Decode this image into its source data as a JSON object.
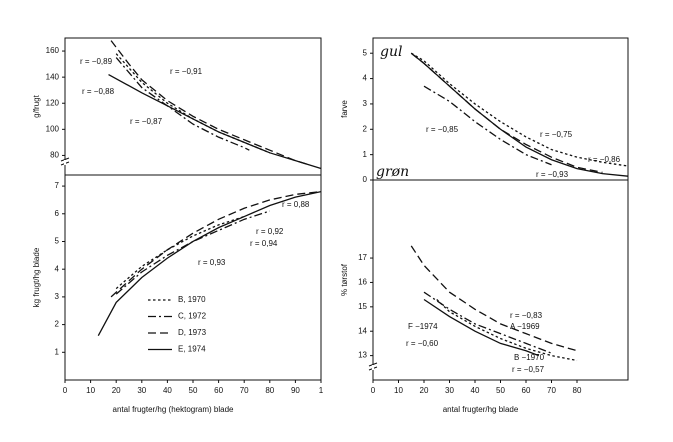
{
  "chart_data": [
    {
      "type": "line",
      "ylabel": "g/frugt",
      "xlim": [
        0,
        100
      ],
      "ylim": [
        65,
        170
      ],
      "yticks": [
        80,
        100,
        120,
        140,
        160
      ],
      "axis_break": true,
      "series": [
        {
          "color": "#111",
          "style": "solid",
          "x": [
            17,
            30,
            40,
            50,
            60,
            70,
            80,
            90,
            100
          ],
          "values": [
            142,
            128,
            118,
            108,
            98,
            90,
            82,
            76,
            70
          ]
        },
        {
          "color": "#111",
          "style": "dashed",
          "x": [
            18,
            25,
            30,
            40,
            50,
            60,
            70,
            80,
            90,
            95
          ],
          "values": [
            168,
            150,
            138,
            122,
            110,
            100,
            92,
            84,
            76,
            73
          ]
        },
        {
          "color": "#111",
          "style": "dashdot",
          "x": [
            20,
            30,
            40,
            50,
            60,
            70,
            72
          ],
          "values": [
            155,
            132,
            118,
            104,
            94,
            86,
            84
          ]
        },
        {
          "color": "#111",
          "style": "dotted",
          "x": [
            20,
            30,
            40,
            50,
            60,
            70,
            80
          ],
          "values": [
            158,
            136,
            120,
            108,
            98,
            90,
            82
          ]
        }
      ],
      "annotations": [
        "r = −0,89",
        "r = −0,91",
        "r = −0,88",
        "r = −0,87"
      ]
    },
    {
      "type": "line",
      "ylabel": "farve",
      "xlim": [
        0,
        100
      ],
      "ylim": [
        0,
        5.6
      ],
      "yticks": [
        0,
        1,
        2,
        3,
        4,
        5
      ],
      "axis_break": false,
      "series": [
        {
          "color": "#111",
          "style": "solid",
          "x": [
            15,
            20,
            30,
            40,
            50,
            60,
            70,
            80,
            90,
            100
          ],
          "values": [
            5,
            4.6,
            3.7,
            2.8,
            2.0,
            1.3,
            0.8,
            0.45,
            0.25,
            0.15
          ]
        },
        {
          "color": "#111",
          "style": "dashdot",
          "x": [
            20,
            30,
            40,
            50,
            60,
            70
          ],
          "values": [
            3.7,
            3.1,
            2.3,
            1.6,
            1.0,
            0.6
          ]
        },
        {
          "color": "#111",
          "style": "dotted",
          "x": [
            15,
            20,
            30,
            40,
            50,
            60,
            70,
            80,
            90,
            100
          ],
          "values": [
            5,
            4.7,
            3.8,
            3.0,
            2.3,
            1.7,
            1.2,
            0.9,
            0.7,
            0.55
          ]
        },
        {
          "color": "#111",
          "style": "dashed",
          "x": [
            15,
            20,
            30,
            40,
            50,
            60,
            70,
            80,
            90
          ],
          "values": [
            5,
            4.6,
            3.7,
            2.8,
            2.0,
            1.4,
            0.9,
            0.5,
            0.3
          ]
        }
      ],
      "annotations": [
        "gul",
        "grøn",
        "r = −0,85",
        "r = −0,75",
        "r = −0,86",
        "r = −0,93"
      ]
    },
    {
      "type": "line",
      "ylabel": "kg frugt/hg blade",
      "xlabel": "antal frugter/hg (hektogram) blade",
      "xlim": [
        0,
        100
      ],
      "ylim": [
        0,
        7.4
      ],
      "xticks": [
        0,
        10,
        20,
        30,
        40,
        50,
        60,
        70,
        80,
        90,
        {
          "value": 100,
          "label": "1"
        }
      ],
      "yticks": [
        1,
        2,
        3,
        4,
        5,
        6,
        7
      ],
      "axis_break": false,
      "series": [
        {
          "name": "B, 1970",
          "color": "#111",
          "style": "dotted",
          "x": [
            20,
            30,
            40,
            50,
            60,
            70
          ],
          "values": [
            3.3,
            4.1,
            4.7,
            5.2,
            5.6,
            5.9
          ]
        },
        {
          "name": "C, 1972",
          "color": "#111",
          "style": "dashdot",
          "x": [
            20,
            30,
            40,
            50,
            60,
            70,
            80
          ],
          "values": [
            3.1,
            3.9,
            4.5,
            5.0,
            5.4,
            5.8,
            6.1
          ]
        },
        {
          "name": "D, 1973",
          "color": "#111",
          "style": "dashed",
          "x": [
            18,
            30,
            40,
            50,
            60,
            70,
            80,
            90,
            100
          ],
          "values": [
            3.0,
            4.0,
            4.7,
            5.3,
            5.8,
            6.2,
            6.5,
            6.7,
            6.8
          ]
        },
        {
          "name": "E, 1974",
          "color": "#111",
          "style": "solid",
          "x": [
            13,
            20,
            30,
            40,
            50,
            60,
            70,
            80,
            90,
            100
          ],
          "values": [
            1.6,
            2.8,
            3.7,
            4.4,
            5.0,
            5.5,
            5.9,
            6.3,
            6.6,
            6.8
          ]
        }
      ],
      "annotations": [
        "r = 0,88",
        "r = 0,92",
        "r = 0,94",
        "r = 0,93"
      ]
    },
    {
      "type": "line",
      "ylabel": "% tørstof",
      "xlabel": "antal frugter/hg blade",
      "xlim": [
        0,
        100
      ],
      "ylim": [
        12,
        20.2
      ],
      "xticks": [
        0,
        10,
        20,
        30,
        40,
        50,
        60,
        70,
        80
      ],
      "yticks": [
        13,
        14,
        15,
        16,
        17
      ],
      "axis_break": true,
      "series": [
        {
          "color": "#111",
          "style": "dashed",
          "x": [
            15,
            20,
            30,
            40,
            50,
            60,
            70,
            80
          ],
          "values": [
            17.5,
            16.7,
            15.6,
            14.9,
            14.3,
            13.9,
            13.5,
            13.2
          ]
        },
        {
          "color": "#111",
          "style": "dashdot",
          "x": [
            20,
            30,
            40,
            50,
            60,
            70
          ],
          "values": [
            15.6,
            14.9,
            14.3,
            13.9,
            13.5,
            13.1
          ]
        },
        {
          "color": "#111",
          "style": "dotted",
          "x": [
            25,
            30,
            40,
            50,
            60,
            70,
            80
          ],
          "values": [
            15.3,
            14.8,
            14.2,
            13.7,
            13.3,
            13.0,
            12.8
          ]
        },
        {
          "color": "#111",
          "style": "solid",
          "x": [
            20,
            30,
            40,
            50,
            60,
            65
          ],
          "values": [
            15.3,
            14.6,
            14.0,
            13.5,
            13.2,
            13.0
          ]
        }
      ],
      "annotations": [
        "r = −0,83",
        "A −1969",
        "F −1974",
        "r = −0,60",
        "B −1970",
        "r = −0,57"
      ]
    }
  ]
}
